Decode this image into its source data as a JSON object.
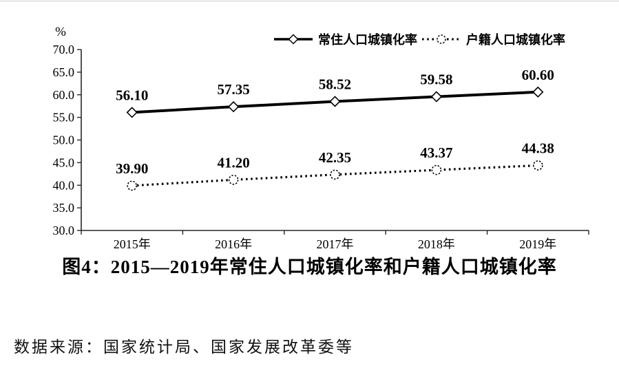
{
  "page": {
    "unit_label": "%",
    "caption": "图4：2015—2019年常住人口城镇化率和户籍人口城镇化率",
    "source_note": "数据来源：国家统计局、国家发展改革委等"
  },
  "colors": {
    "line": "#000000",
    "text": "#000000",
    "axis": "#262626",
    "marker_fill": "#ffffff",
    "top_border": "#ebebeb"
  },
  "chart_data": {
    "type": "line",
    "title": "图4：2015—2019年常住人口城镇化率和户籍人口城镇化率",
    "categories": [
      "2015年",
      "2016年",
      "2017年",
      "2018年",
      "2019年"
    ],
    "series": [
      {
        "name": "常住人口城镇化率",
        "line_style": "solid",
        "marker": "diamond",
        "values": [
          56.1,
          57.35,
          58.52,
          59.58,
          60.6
        ],
        "labels": [
          "56.10",
          "57.35",
          "58.52",
          "59.58",
          "60.60"
        ]
      },
      {
        "name": "户籍人口城镇化率",
        "line_style": "dotted",
        "marker": "circle",
        "values": [
          39.9,
          41.2,
          42.35,
          43.37,
          44.38
        ],
        "labels": [
          "39.90",
          "41.20",
          "42.35",
          "43.37",
          "44.38"
        ]
      }
    ],
    "xlabel": "",
    "ylabel": "%",
    "ylim": [
      30.0,
      70.0
    ],
    "ytick_step": 5.0,
    "yticks": [
      "70.0",
      "65.0",
      "60.0",
      "55.0",
      "50.0",
      "45.0",
      "40.0",
      "35.0",
      "30.0"
    ],
    "grid": false,
    "legend_position": "top"
  }
}
